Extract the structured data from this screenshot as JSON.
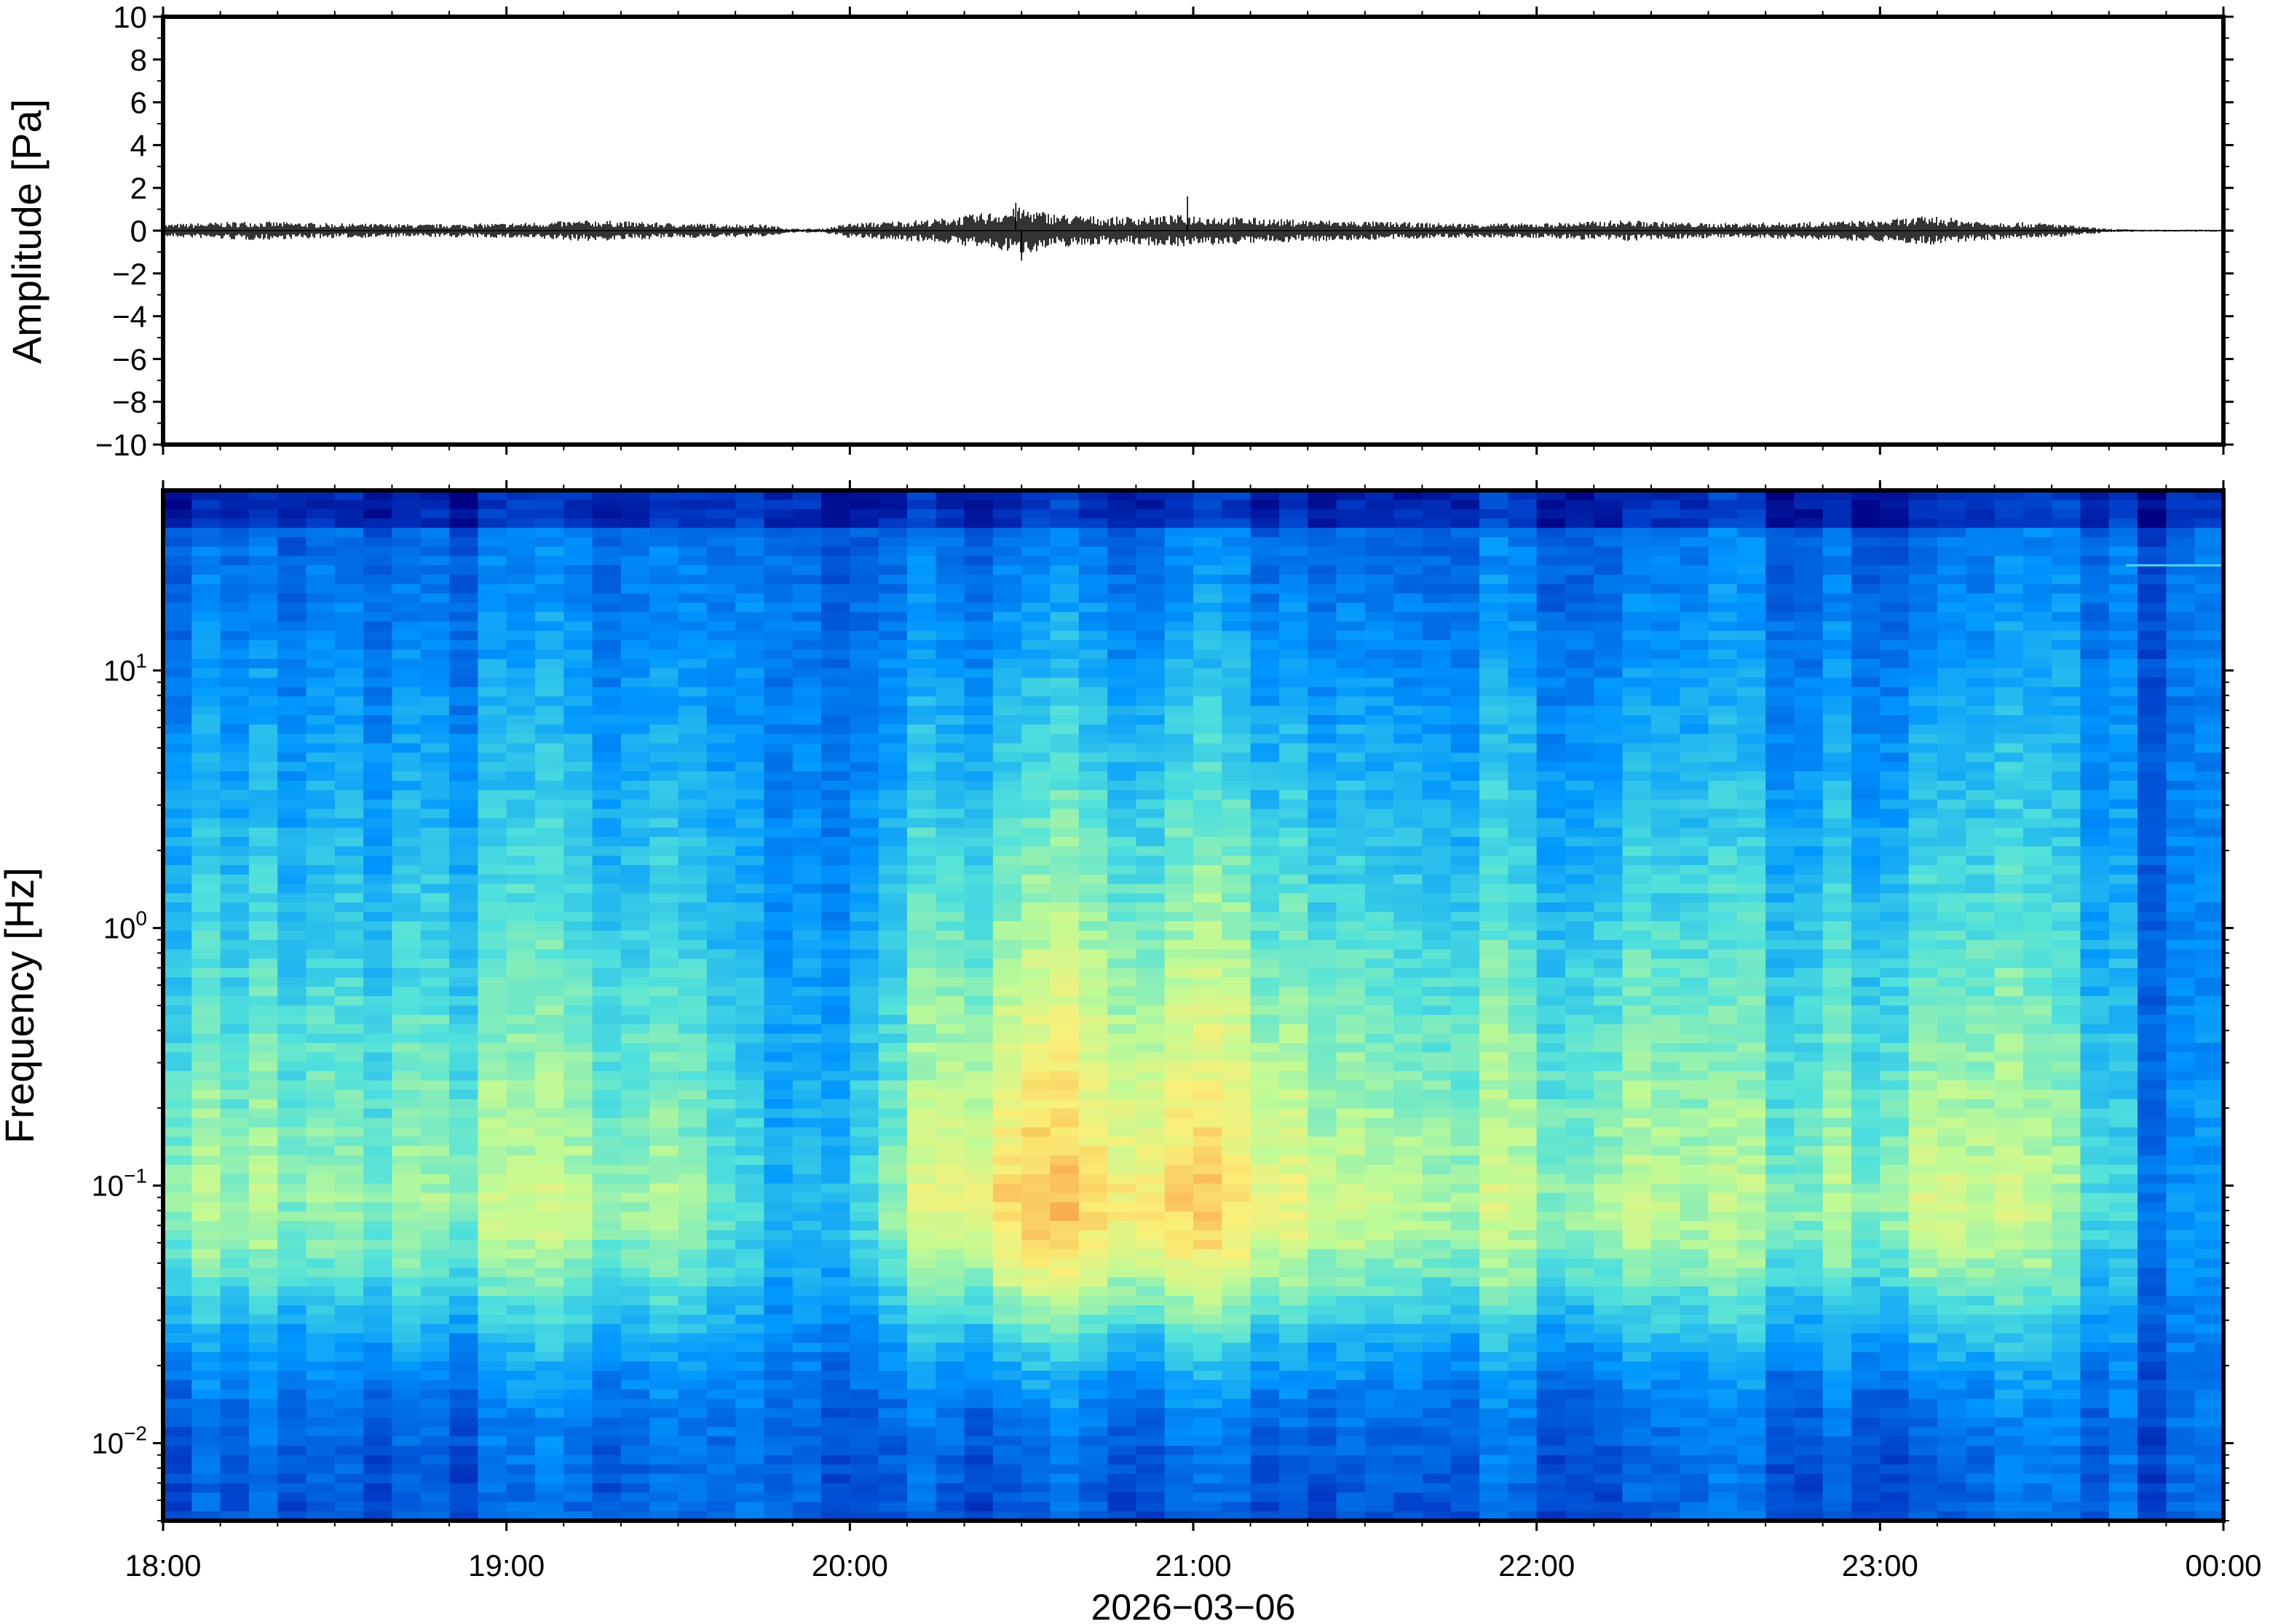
{
  "chart_data": [
    {
      "type": "line",
      "panel": "waveform",
      "ylabel": "Amplitude [Pa]",
      "ylim": [
        -10,
        10
      ],
      "yticks": [
        -10,
        -8,
        -6,
        -4,
        -2,
        0,
        2,
        4,
        6,
        8,
        10
      ],
      "ytick_labels": [
        "−10",
        "−8",
        "−6",
        "−4",
        "−2",
        "0",
        "2",
        "4",
        "6",
        "8",
        "10"
      ],
      "xlim": [
        "18:00",
        "00:00"
      ],
      "envelope": {
        "x_hours": [
          18.0,
          18.25,
          18.5,
          18.75,
          19.0,
          19.25,
          19.5,
          19.75,
          19.83,
          19.92,
          20.0,
          20.25,
          20.4,
          20.5,
          20.6,
          20.75,
          21.0,
          21.25,
          21.5,
          21.75,
          22.0,
          22.25,
          22.5,
          22.75,
          23.0,
          23.15,
          23.3,
          23.5,
          23.65,
          23.75,
          24.0
        ],
        "amplitude_pa": [
          0.3,
          0.45,
          0.35,
          0.3,
          0.35,
          0.5,
          0.35,
          0.3,
          0.1,
          0.1,
          0.35,
          0.55,
          0.85,
          1.1,
          0.8,
          0.65,
          0.75,
          0.55,
          0.45,
          0.35,
          0.35,
          0.5,
          0.35,
          0.4,
          0.5,
          0.7,
          0.45,
          0.35,
          0.1,
          0.05,
          0.05
        ]
      },
      "peaks_pa": [
        {
          "x": "20:30",
          "y": -1.4
        },
        {
          "x": "20:29",
          "y": 1.3
        },
        {
          "x": "20:59",
          "y": 1.6
        }
      ]
    },
    {
      "type": "heatmap",
      "panel": "spectrogram",
      "ylabel": "Frequency [Hz]",
      "yscale": "log",
      "ylim": [
        0.005,
        50
      ],
      "yticks": [
        0.01,
        0.1,
        1,
        10
      ],
      "ytick_labels": [
        {
          "base": "10",
          "exp": "−2"
        },
        {
          "base": "10",
          "exp": "−1"
        },
        {
          "base": "10",
          "exp": "0"
        },
        {
          "base": "10",
          "exp": "1"
        }
      ],
      "xlabel": "2026−03−06",
      "xlim": [
        "18:00",
        "00:00"
      ],
      "xtick_labels": [
        "18:00",
        "19:00",
        "20:00",
        "21:00",
        "22:00",
        "23:00",
        "00:00"
      ],
      "colormap": "jet (blue = low power, red = high power)",
      "intensity_by_time": {
        "x_hours": [
          18.0,
          18.5,
          19.0,
          19.5,
          19.8,
          19.95,
          20.25,
          20.5,
          20.75,
          21.0,
          21.25,
          21.5,
          22.0,
          22.3,
          22.5,
          23.0,
          23.15,
          23.5,
          23.7,
          23.75,
          24.0
        ],
        "relative_level": [
          0.55,
          0.5,
          0.55,
          0.5,
          0.2,
          0.3,
          0.65,
          0.85,
          0.8,
          0.8,
          0.7,
          0.6,
          0.55,
          0.6,
          0.5,
          0.55,
          0.65,
          0.5,
          0.3,
          0.15,
          0.1
        ]
      }
    }
  ]
}
